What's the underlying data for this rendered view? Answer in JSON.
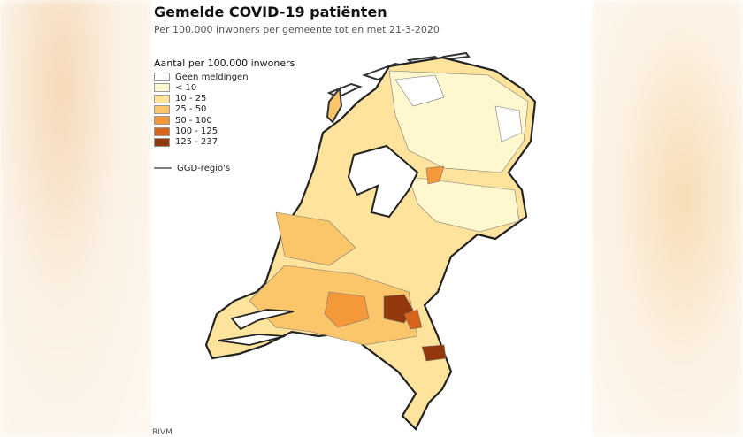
{
  "header": {
    "title": "Gemelde COVID-19 patiënten",
    "subtitle": "Per 100.000 inwoners per gemeente tot en met 21-3-2020"
  },
  "legend": {
    "title": "Aantal per 100.000 inwoners",
    "items": [
      {
        "label": "Geen meldingen",
        "color": "#ffffff"
      },
      {
        "label": "< 10",
        "color": "#fff8cf"
      },
      {
        "label": "10 - 25",
        "color": "#fde39b"
      },
      {
        "label": "25 - 50",
        "color": "#fbc56a"
      },
      {
        "label": "50 - 100",
        "color": "#f59839"
      },
      {
        "label": "100 - 125",
        "color": "#d8641c"
      },
      {
        "label": "125 - 237",
        "color": "#93370d"
      }
    ],
    "line": "GGD-regio's"
  },
  "source": "RIVM"
}
